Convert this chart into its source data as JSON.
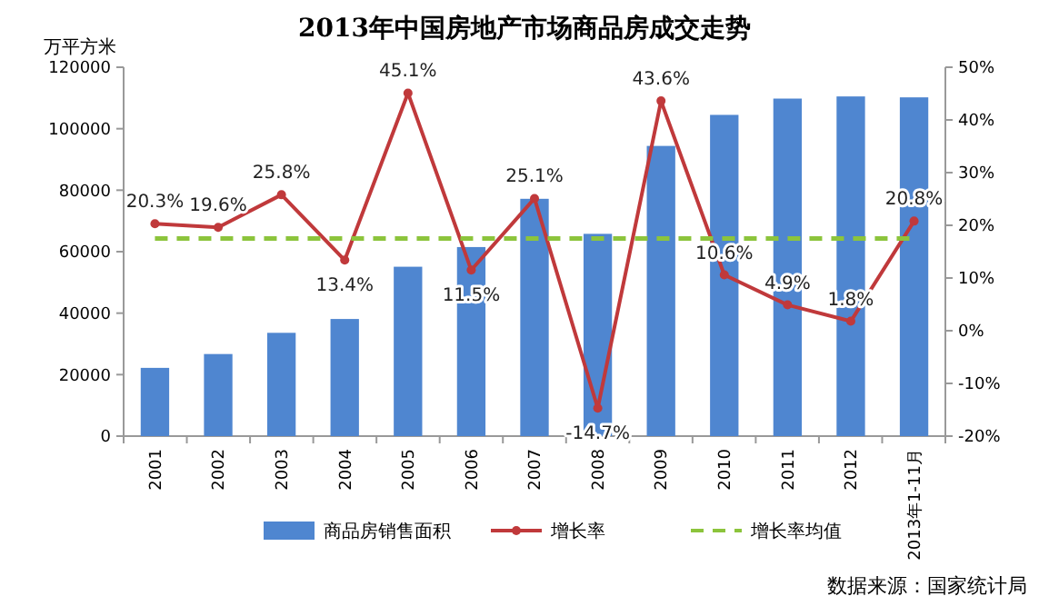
{
  "chart_data": {
    "type": "bar",
    "title": "2013年中国房地产市场商品房成交走势",
    "ylabel": "万平方米",
    "categories": [
      "2001",
      "2002",
      "2003",
      "2004",
      "2005",
      "2006",
      "2007",
      "2008",
      "2009",
      "2010",
      "2011",
      "2012",
      "2013年1-11月"
    ],
    "series": [
      {
        "name": "商品房销售面积",
        "color": "#4f86d0",
        "values": [
          22200,
          26700,
          33600,
          38100,
          55100,
          61500,
          77200,
          65800,
          94400,
          104500,
          109800,
          110500,
          110200
        ]
      },
      {
        "name": "增长率",
        "type": "line",
        "axis": "y2",
        "color": "#c0393b",
        "marker": "circle",
        "data_labels": true,
        "value_labels": [
          "20.3%",
          "19.6%",
          "25.8%",
          "13.4%",
          "45.1%",
          "11.5%",
          "25.1%",
          "-14.7%",
          "43.6%",
          "10.6%",
          "4.9%",
          "1.8%",
          "20.8%"
        ],
        "values": [
          20.3,
          19.6,
          25.8,
          13.4,
          45.1,
          11.5,
          25.1,
          -14.7,
          43.6,
          10.6,
          4.9,
          1.8,
          20.8
        ]
      },
      {
        "name": "增长率均值",
        "type": "line",
        "axis": "y2",
        "color": "#8cc43c",
        "marker": "none",
        "line_style": "dashed",
        "values": [
          17.5,
          17.5,
          17.5,
          17.5,
          17.5,
          17.5,
          17.5,
          17.5,
          17.5,
          17.5,
          17.5,
          17.5,
          17.5
        ]
      }
    ],
    "ylim": [
      0,
      120000
    ],
    "yticks": [
      0,
      20000,
      40000,
      60000,
      80000,
      100000,
      120000
    ],
    "y2lim": [
      -20,
      50
    ],
    "y2ticks": [
      {
        "value": -20,
        "label": "-20%"
      },
      {
        "value": -10,
        "label": "-10%"
      },
      {
        "value": 0,
        "label": "0%"
      },
      {
        "value": 10,
        "label": "10%"
      },
      {
        "value": 20,
        "label": "20%"
      },
      {
        "value": 30,
        "label": "30%"
      },
      {
        "value": 40,
        "label": "40%"
      },
      {
        "value": 50,
        "label": "50%"
      }
    ],
    "grid": false,
    "legend": "bottom",
    "annotations": [
      "数据来源：国家统计局"
    ]
  }
}
